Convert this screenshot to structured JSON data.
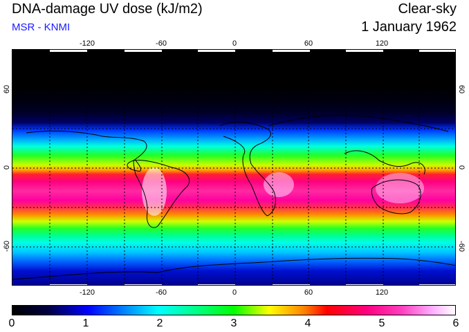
{
  "header": {
    "title": "DNA-damage UV dose (kJ/m2)",
    "subtitle": "MSR - KNMI",
    "condition": "Clear-sky",
    "date": "1 January 1962"
  },
  "colors": {
    "subtitle": "#1a1aff",
    "dark_polar": "#000000",
    "max_white": "#ffffff"
  },
  "map": {
    "longitude_labels": [
      "-120",
      "-60",
      "0",
      "60",
      "120"
    ],
    "latitude_labels": [
      "60",
      "0",
      "-60"
    ]
  },
  "colorbar": {
    "min": 0,
    "max": 6,
    "labels": [
      "0",
      "1",
      "2",
      "3",
      "4",
      "5",
      "6"
    ]
  }
}
